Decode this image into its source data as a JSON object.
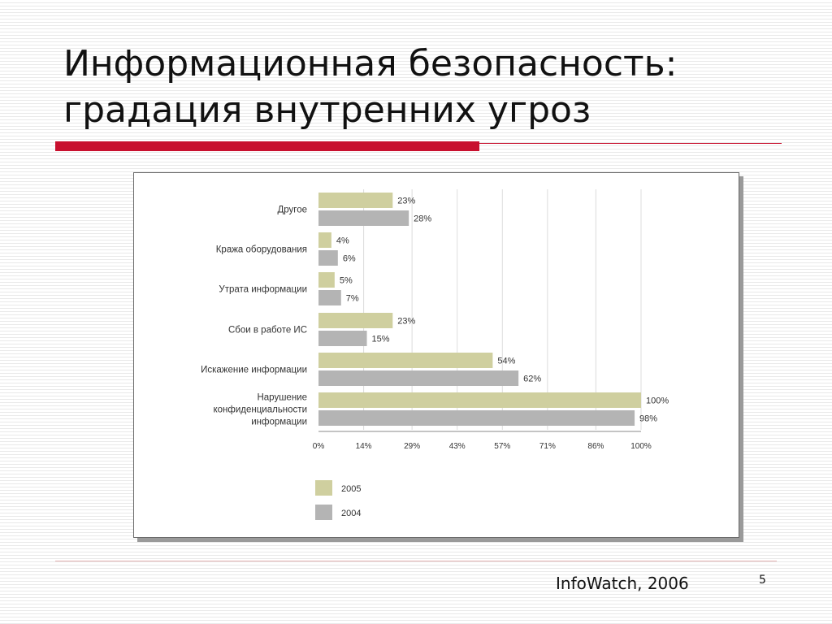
{
  "slide": {
    "title_line1": "Информационная безопасность:",
    "title_line2": "градация внутренних угроз",
    "source": "InfoWatch, 2006",
    "slide_number": "5"
  },
  "colors": {
    "accent_red": "#c8102e",
    "series_2005": "#cfcf9f",
    "series_2004": "#b4b4b4",
    "gridline": "#dcdcdc",
    "text": "#333333"
  },
  "chart_data": {
    "type": "bar",
    "orientation": "horizontal",
    "categories": [
      "Другое",
      "Кража оборудования",
      "Утрата информации",
      "Сбои в работе ИС",
      "Искажение информации",
      "Нарушение конфиденциальности информации"
    ],
    "category_label_lines": [
      [
        "Другое"
      ],
      [
        "Кража оборудования"
      ],
      [
        "Утрата информации"
      ],
      [
        "Сбои в работе ИС"
      ],
      [
        "Искажение информации"
      ],
      [
        "Нарушение",
        "конфиденциальности",
        "информации"
      ]
    ],
    "series": [
      {
        "name": "2005",
        "values": [
          23,
          4,
          5,
          23,
          54,
          100
        ],
        "labels": [
          "23%",
          "4%",
          "5%",
          "23%",
          "54%",
          "100%"
        ],
        "color": "#cfcf9f"
      },
      {
        "name": "2004",
        "values": [
          28,
          6,
          7,
          15,
          62,
          98
        ],
        "labels": [
          "28%",
          "6%",
          "7%",
          "15%",
          "62%",
          "98%"
        ],
        "color": "#b4b4b4"
      }
    ],
    "x_ticks": [
      0,
      14,
      29,
      43,
      57,
      71,
      86,
      100
    ],
    "x_tick_labels": [
      "0%",
      "14%",
      "29%",
      "43%",
      "57%",
      "71%",
      "86%",
      "100%"
    ],
    "xlim": [
      0,
      100
    ],
    "grid": true,
    "legend_placement": "bottom-left"
  }
}
